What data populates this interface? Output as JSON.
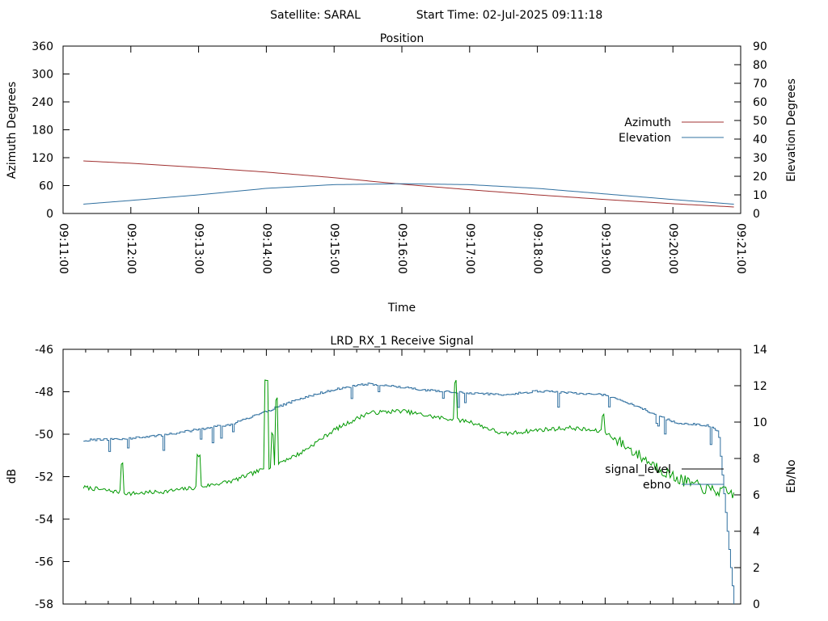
{
  "header": {
    "satellite_text": "Satellite: SARAL",
    "start_time_text": "Start Time: 02-Jul-2025 09:11:18"
  },
  "chart_data": [
    {
      "id": "position",
      "type": "line",
      "title": "Position",
      "xlabel": "Time",
      "ylabel": "Azimuth Degrees",
      "y2label": "Elevation Degrees",
      "x_ticks": [
        "09:11:00",
        "09:12:00",
        "09:13:00",
        "09:14:00",
        "09:15:00",
        "09:16:00",
        "09:17:00",
        "09:18:00",
        "09:19:00",
        "09:20:00",
        "09:21:00"
      ],
      "ylim": [
        0,
        360
      ],
      "y_ticks": [
        0,
        60,
        120,
        180,
        240,
        300,
        360
      ],
      "y2lim": [
        0,
        90
      ],
      "y2_ticks": [
        0,
        10,
        20,
        30,
        40,
        50,
        60,
        70,
        80,
        90
      ],
      "legend_placement": "right",
      "grid": false,
      "series": [
        {
          "name": "Azimuth",
          "axis": "left",
          "color": "#a03030",
          "x": [
            "09:11:18",
            "09:12:00",
            "09:13:00",
            "09:14:00",
            "09:15:00",
            "09:16:00",
            "09:17:00",
            "09:18:00",
            "09:19:00",
            "09:20:00",
            "09:20:54"
          ],
          "values": [
            113,
            108,
            99,
            89,
            77,
            63,
            51,
            40,
            30,
            21,
            14
          ]
        },
        {
          "name": "Elevation",
          "axis": "right",
          "color": "#3070a0",
          "x": [
            "09:11:18",
            "09:12:00",
            "09:13:00",
            "09:14:00",
            "09:15:00",
            "09:16:00",
            "09:17:00",
            "09:18:00",
            "09:19:00",
            "09:20:00",
            "09:20:54"
          ],
          "values": [
            5,
            7,
            10,
            13.5,
            15.5,
            16,
            15.5,
            13.5,
            10.5,
            7.5,
            5
          ]
        }
      ]
    },
    {
      "id": "receive_signal",
      "type": "line",
      "title": "LRD_RX_1 Receive Signal",
      "ylabel": "dB",
      "y2label": "Eb/No",
      "ylim": [
        -58,
        -46
      ],
      "y_ticks": [
        -58,
        -56,
        -54,
        -52,
        -50,
        -48,
        -46
      ],
      "y2lim": [
        0,
        14
      ],
      "y2_ticks": [
        0,
        2,
        4,
        6,
        8,
        10,
        12,
        14
      ],
      "x_range": [
        "09:11:00",
        "09:21:00"
      ],
      "legend_placement": "right",
      "grid": false,
      "series": [
        {
          "name": "signal_level",
          "axis": "left",
          "legend_color": "#000000",
          "color": "#009900",
          "x": [
            "09:11:18",
            "09:12:00",
            "09:12:30",
            "09:13:00",
            "09:13:30",
            "09:14:00",
            "09:14:30",
            "09:15:00",
            "09:15:30",
            "09:16:00",
            "09:16:30",
            "09:17:00",
            "09:17:30",
            "09:18:00",
            "09:18:30",
            "09:19:00",
            "09:19:30",
            "09:20:00",
            "09:20:30",
            "09:20:54"
          ],
          "values": [
            -52.5,
            -52.8,
            -52.7,
            -52.5,
            -52.2,
            -51.6,
            -50.9,
            -49.8,
            -49.0,
            -48.9,
            -49.2,
            -49.4,
            -50.0,
            -49.8,
            -49.7,
            -49.9,
            -51.0,
            -52.0,
            -52.6,
            -52.8
          ]
        },
        {
          "name": "ebno",
          "axis": "right",
          "legend_color": "#3070a0",
          "color": "#3070a0",
          "x": [
            "09:11:18",
            "09:12:00",
            "09:12:30",
            "09:13:00",
            "09:13:30",
            "09:14:00",
            "09:14:30",
            "09:15:00",
            "09:15:30",
            "09:16:00",
            "09:16:30",
            "09:17:00",
            "09:17:30",
            "09:18:00",
            "09:18:30",
            "09:19:00",
            "09:19:30",
            "09:20:00",
            "09:20:30",
            "09:20:40",
            "09:20:48",
            "09:20:54"
          ],
          "values": [
            9.0,
            9.1,
            9.3,
            9.6,
            9.9,
            10.6,
            11.3,
            11.8,
            12.1,
            11.9,
            11.7,
            11.6,
            11.5,
            11.7,
            11.6,
            11.5,
            10.8,
            10.0,
            9.8,
            9.5,
            4.0,
            0.0
          ]
        }
      ]
    }
  ]
}
